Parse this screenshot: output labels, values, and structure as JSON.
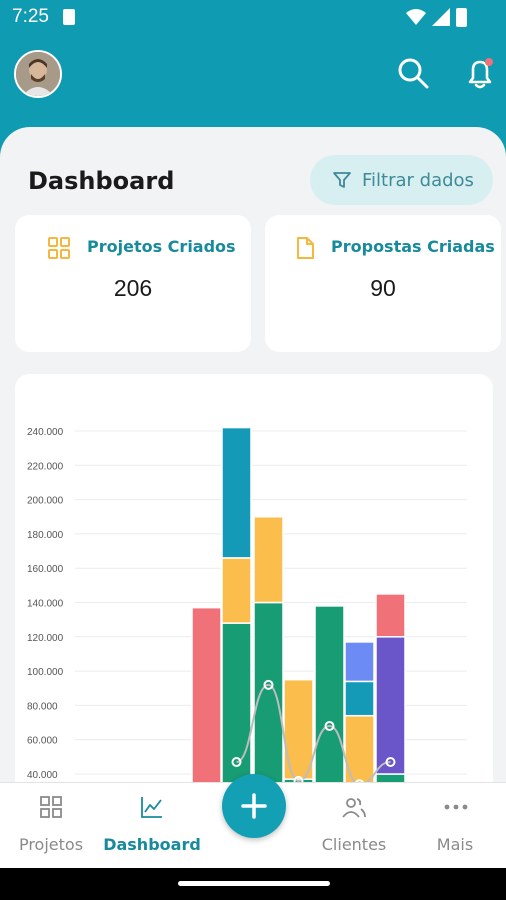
{
  "status_bar": {
    "time": "7:25"
  },
  "header": {
    "avatar_icon": "user-avatar",
    "search_icon": "search-icon",
    "notification_icon": "bell-icon",
    "accent": "#0f9bb1"
  },
  "dashboard": {
    "title": "Dashboard",
    "filter_label": "Filtrar dados",
    "stats": [
      {
        "label": "Projetos Criados",
        "value": "206",
        "icon": "grid-icon",
        "icon_color": "#f6b73c"
      },
      {
        "label": "Propostas Criadas",
        "value": "90",
        "icon": "document-icon",
        "icon_color": "#f6b73c"
      }
    ]
  },
  "chart_data": {
    "type": "bar",
    "stacked": true,
    "y_ticks": [
      "240.000",
      "220.000",
      "200.000",
      "180.000",
      "160.000",
      "140.000",
      "120.000",
      "100.000",
      "80.000",
      "60.000",
      "40.000"
    ],
    "ylim": [
      0,
      240000
    ],
    "bars": [
      {
        "segments": [
          {
            "value": 137000,
            "color": "#f07178"
          }
        ]
      },
      {
        "segments": [
          {
            "value": 128000,
            "color": "#189c73"
          },
          {
            "value": 38000,
            "color": "#fbbd4b"
          },
          {
            "value": 76000,
            "color": "#1499b6"
          }
        ]
      },
      {
        "segments": [
          {
            "value": 140000,
            "color": "#189c73"
          },
          {
            "value": 50000,
            "color": "#fbbd4b"
          }
        ]
      },
      {
        "segments": [
          {
            "value": 37000,
            "color": "#189c73"
          },
          {
            "value": 58000,
            "color": "#fbbd4b"
          }
        ]
      },
      {
        "segments": [
          {
            "value": 138000,
            "color": "#189c73"
          }
        ]
      },
      {
        "segments": [
          {
            "value": 34000,
            "color": "#189c73"
          },
          {
            "value": 40000,
            "color": "#fbbd4b"
          },
          {
            "value": 20000,
            "color": "#1499b6"
          },
          {
            "value": 23000,
            "color": "#6c8bf5"
          }
        ]
      },
      {
        "segments": [
          {
            "value": 40000,
            "color": "#189c73"
          },
          {
            "value": 80000,
            "color": "#6a55c9"
          },
          {
            "value": 25000,
            "color": "#f07178"
          }
        ]
      }
    ],
    "line": {
      "color": "#bdbdbd",
      "points": [
        null,
        47000,
        92000,
        36000,
        68000,
        34000,
        47000
      ]
    }
  },
  "bottom_nav": {
    "items": [
      {
        "label": "Projetos",
        "icon": "grid-icon"
      },
      {
        "label": "Dashboard",
        "icon": "chart-icon"
      },
      {
        "label": "Clientes",
        "icon": "users-icon"
      },
      {
        "label": "Mais",
        "icon": "more-icon"
      }
    ],
    "fab_icon": "plus-icon"
  }
}
